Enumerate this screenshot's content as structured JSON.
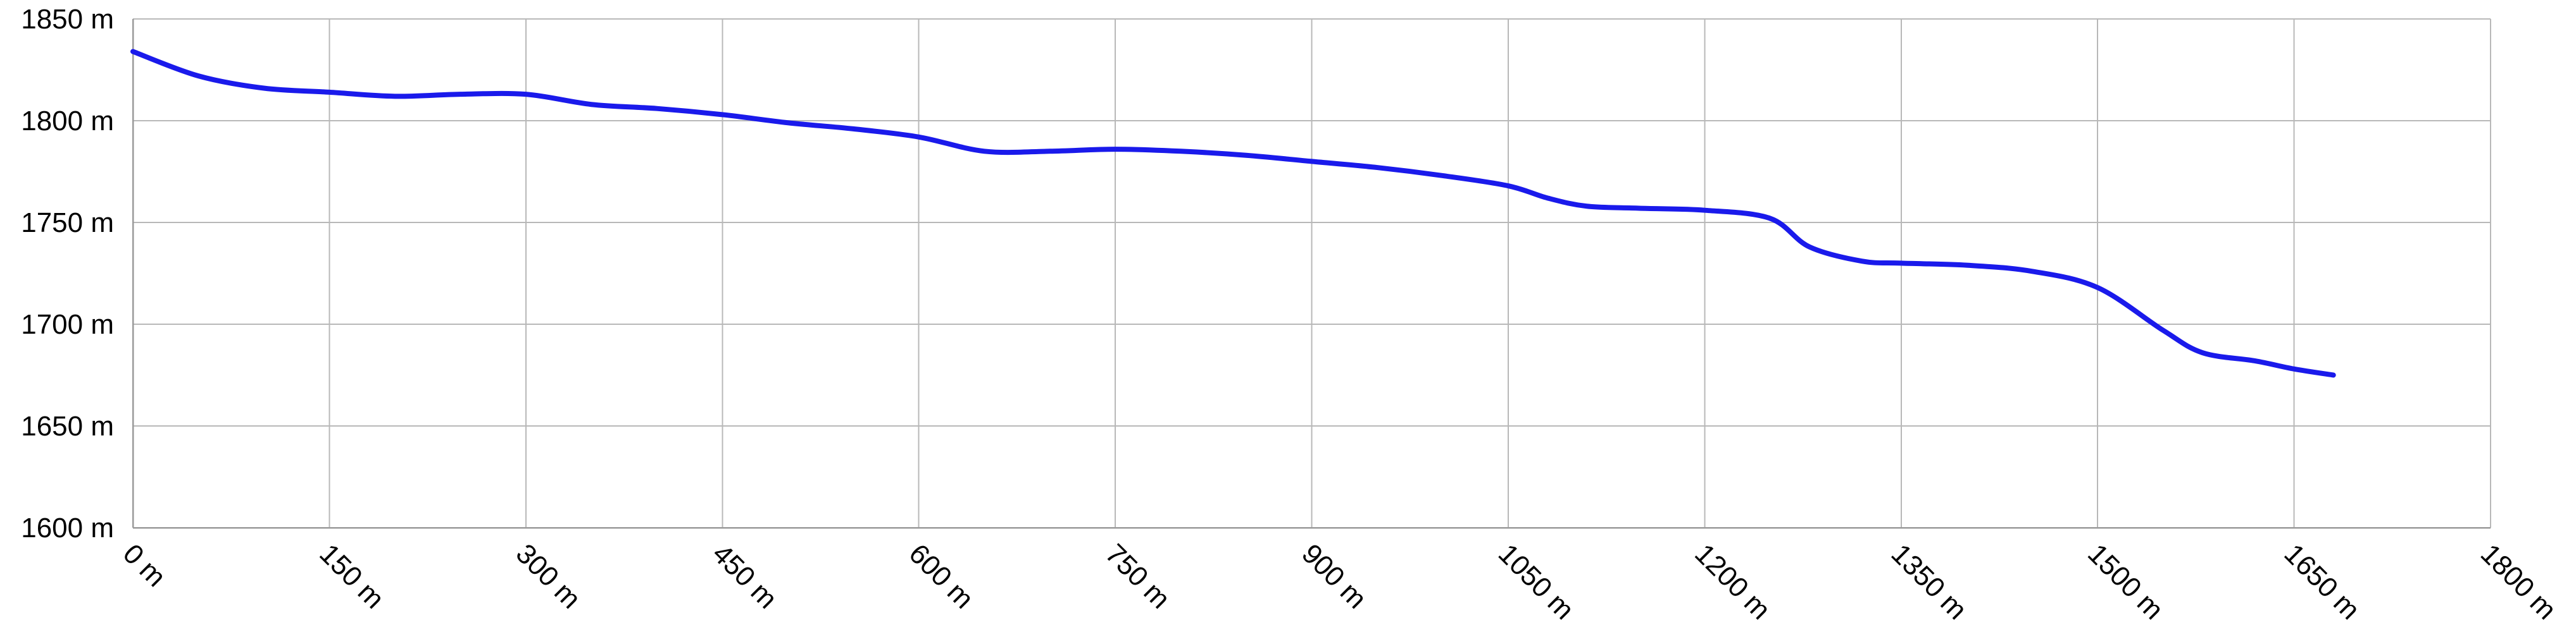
{
  "chart_data": {
    "type": "line",
    "title": "",
    "xlabel": "",
    "ylabel": "",
    "xlim": [
      0,
      1800
    ],
    "ylim": [
      1600,
      1850
    ],
    "x_unit": "m",
    "y_unit": "m",
    "x_ticks": [
      "0 m",
      "150 m",
      "300 m",
      "450 m",
      "600 m",
      "750 m",
      "900 m",
      "1050 m",
      "1200 m",
      "1350 m",
      "1500 m",
      "1650 m",
      "1800 m"
    ],
    "y_ticks": [
      "1850 m",
      "1800 m",
      "1750 m",
      "1700 m",
      "1650 m",
      "1600 m"
    ],
    "x_tick_values": [
      0,
      150,
      300,
      450,
      600,
      750,
      900,
      1050,
      1200,
      1350,
      1500,
      1650,
      1800
    ],
    "y_tick_values": [
      1850,
      1800,
      1750,
      1700,
      1650,
      1600
    ],
    "grid": true,
    "legend": "none",
    "line_color": "#1a1aeb",
    "series": [
      {
        "x": [
          0,
          50,
          100,
          150,
          200,
          250,
          300,
          350,
          400,
          450,
          500,
          550,
          600,
          650,
          700,
          750,
          800,
          850,
          900,
          950,
          1000,
          1050,
          1080,
          1110,
          1150,
          1200,
          1250,
          1280,
          1320,
          1350,
          1400,
          1450,
          1500,
          1550,
          1580,
          1620,
          1650,
          1680
        ],
        "y": [
          1834,
          1822,
          1816,
          1814,
          1812,
          1813,
          1813,
          1808,
          1806,
          1803,
          1799,
          1796,
          1792,
          1785,
          1785,
          1786,
          1785,
          1783,
          1780,
          1777,
          1773,
          1768,
          1762,
          1758,
          1757,
          1756,
          1752,
          1738,
          1731,
          1730,
          1729,
          1726,
          1718,
          1697,
          1686,
          1682,
          1678,
          1675
        ]
      }
    ]
  }
}
